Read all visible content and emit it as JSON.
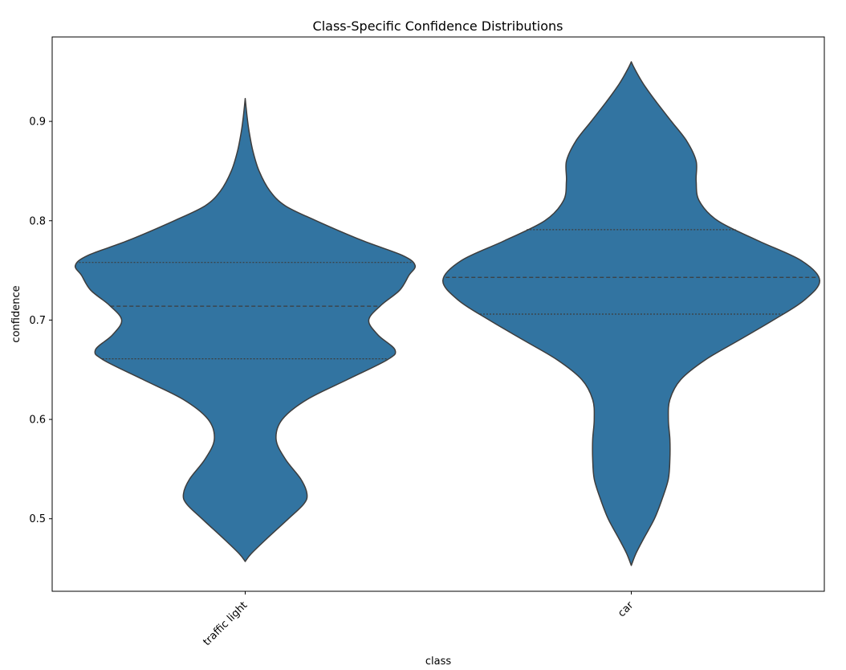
{
  "chart_data": {
    "type": "violin",
    "title": "Class-Specific Confidence Distributions",
    "xlabel": "class",
    "ylabel": "confidence",
    "ylim": [
      0.427,
      0.985
    ],
    "yticks": [
      0.5,
      0.6,
      0.7,
      0.8,
      0.9
    ],
    "ytick_labels": [
      "0.5",
      "0.6",
      "0.7",
      "0.8",
      "0.9"
    ],
    "categories": [
      "traffic light",
      "car"
    ],
    "fill_color": "#3274a1",
    "edge_color": "#3d3d3d",
    "violins": [
      {
        "category": "traffic light",
        "min": 0.457,
        "max": 0.923,
        "quartiles": {
          "q1": 0.661,
          "median": 0.714,
          "q3": 0.758
        },
        "profile": [
          [
            0.457,
            0.0
          ],
          [
            0.465,
            0.04
          ],
          [
            0.48,
            0.14
          ],
          [
            0.5,
            0.28
          ],
          [
            0.515,
            0.38
          ],
          [
            0.525,
            0.4
          ],
          [
            0.54,
            0.36
          ],
          [
            0.56,
            0.26
          ],
          [
            0.58,
            0.2
          ],
          [
            0.6,
            0.24
          ],
          [
            0.62,
            0.4
          ],
          [
            0.64,
            0.66
          ],
          [
            0.66,
            0.92
          ],
          [
            0.67,
            0.97
          ],
          [
            0.685,
            0.86
          ],
          [
            0.7,
            0.8
          ],
          [
            0.715,
            0.88
          ],
          [
            0.73,
            1.0
          ],
          [
            0.745,
            1.06
          ],
          [
            0.755,
            1.1
          ],
          [
            0.765,
            1.02
          ],
          [
            0.78,
            0.76
          ],
          [
            0.8,
            0.46
          ],
          [
            0.815,
            0.26
          ],
          [
            0.83,
            0.16
          ],
          [
            0.85,
            0.09
          ],
          [
            0.87,
            0.05
          ],
          [
            0.89,
            0.025
          ],
          [
            0.905,
            0.012
          ],
          [
            0.923,
            0.0
          ]
        ]
      },
      {
        "category": "car",
        "min": 0.453,
        "max": 0.96,
        "quartiles": {
          "q1": 0.706,
          "median": 0.743,
          "q3": 0.791
        },
        "profile": [
          [
            0.453,
            0.0
          ],
          [
            0.465,
            0.03
          ],
          [
            0.48,
            0.08
          ],
          [
            0.5,
            0.15
          ],
          [
            0.52,
            0.2
          ],
          [
            0.54,
            0.24
          ],
          [
            0.56,
            0.25
          ],
          [
            0.58,
            0.25
          ],
          [
            0.6,
            0.24
          ],
          [
            0.62,
            0.25
          ],
          [
            0.64,
            0.32
          ],
          [
            0.66,
            0.48
          ],
          [
            0.68,
            0.7
          ],
          [
            0.7,
            0.92
          ],
          [
            0.72,
            1.12
          ],
          [
            0.74,
            1.22
          ],
          [
            0.76,
            1.1
          ],
          [
            0.78,
            0.82
          ],
          [
            0.8,
            0.56
          ],
          [
            0.82,
            0.44
          ],
          [
            0.84,
            0.42
          ],
          [
            0.86,
            0.42
          ],
          [
            0.88,
            0.36
          ],
          [
            0.9,
            0.26
          ],
          [
            0.92,
            0.16
          ],
          [
            0.935,
            0.09
          ],
          [
            0.945,
            0.05
          ],
          [
            0.955,
            0.015
          ],
          [
            0.96,
            0.0
          ]
        ]
      }
    ]
  }
}
